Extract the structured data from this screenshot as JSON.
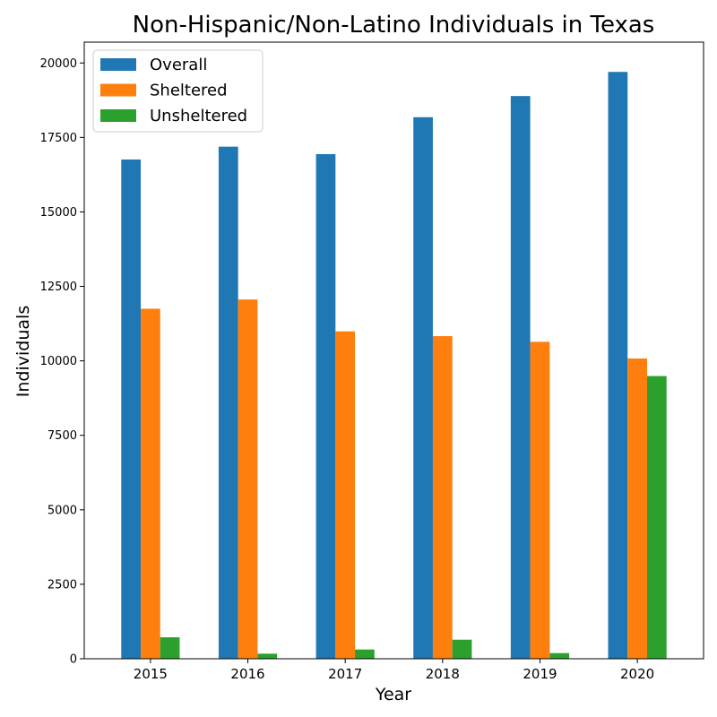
{
  "chart_data": {
    "type": "bar",
    "title": "Non-Hispanic/Non-Latino Individuals in Texas",
    "xlabel": "Year",
    "ylabel": "Individuals",
    "categories": [
      "2015",
      "2016",
      "2017",
      "2018",
      "2019",
      "2020"
    ],
    "series": [
      {
        "name": "Overall",
        "color": "#1f77b4",
        "values": [
          16760,
          17190,
          16940,
          18180,
          18890,
          19700
        ]
      },
      {
        "name": "Sheltered",
        "color": "#ff7f0e",
        "values": [
          11750,
          12060,
          10990,
          10830,
          10640,
          10080
        ]
      },
      {
        "name": "Unsheltered",
        "color": "#2ca02c",
        "values": [
          720,
          170,
          310,
          640,
          190,
          9490
        ]
      }
    ],
    "ylim": [
      0,
      20700
    ],
    "yticks": [
      "0",
      "2500",
      "5000",
      "7500",
      "10000",
      "12500",
      "15000",
      "17500",
      "20000"
    ],
    "grid": false,
    "legend_position": "top-left"
  }
}
